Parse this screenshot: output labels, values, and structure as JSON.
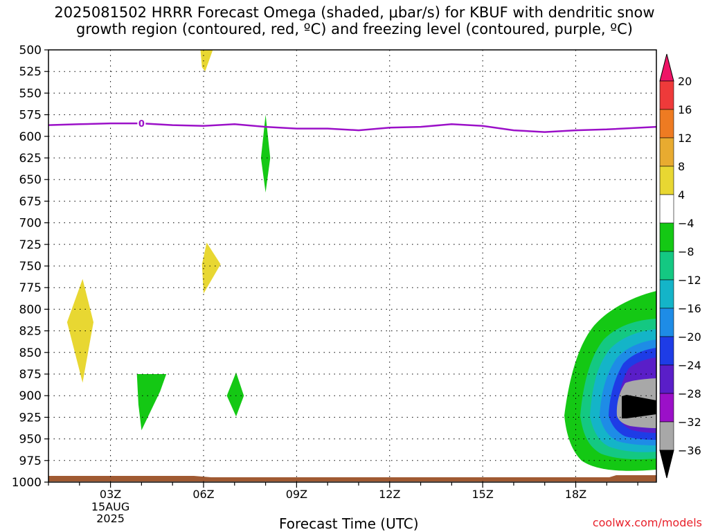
{
  "title": {
    "line1": "2025081502 HRRR Forecast Omega (shaded, μbar/s) for KBUF with dendritic snow",
    "line2": "growth region (contoured, red, ºC) and freezing level (contoured, purple, ºC)"
  },
  "watermark": "coolwx.com/models",
  "chart_data": {
    "type": "heatmap",
    "xlabel": "Forecast Time (UTC)",
    "ylabel": "",
    "x_ticks": [
      {
        "label": "03Z",
        "sub": [
          "15AUG",
          "2025"
        ]
      },
      {
        "label": "06Z",
        "sub": []
      },
      {
        "label": "09Z",
        "sub": []
      },
      {
        "label": "12Z",
        "sub": []
      },
      {
        "label": "15Z",
        "sub": []
      },
      {
        "label": "18Z",
        "sub": []
      }
    ],
    "xlim_hours_utc": [
      1.0,
      20.6
    ],
    "y_ticks": [
      "500",
      "525",
      "550",
      "575",
      "600",
      "625",
      "650",
      "675",
      "700",
      "725",
      "750",
      "775",
      "800",
      "825",
      "850",
      "875",
      "900",
      "925",
      "950",
      "975",
      "1000"
    ],
    "ylim_hpa": [
      500,
      1000
    ],
    "grid": true,
    "colorbar": {
      "labels": [
        "20",
        "16",
        "12",
        "8",
        "4",
        "−4",
        "−8",
        "−12",
        "−16",
        "−20",
        "−24",
        "−28",
        "−32",
        "−36"
      ],
      "colors": [
        "#ee1466",
        "#ee3a3a",
        "#ee7b22",
        "#e8ab30",
        "#e8d732",
        "#ffffff",
        "#14c814",
        "#14c882",
        "#14b4c8",
        "#1e8ce6",
        "#1e3ce6",
        "#5a1ec8",
        "#9b10c8",
        "#a8a8a8",
        "#000000"
      ]
    },
    "freezing_level": {
      "label": "0",
      "color": "#9b10c8",
      "points": [
        [
          1.0,
          587
        ],
        [
          2.0,
          586
        ],
        [
          3.0,
          585
        ],
        [
          4.0,
          585
        ],
        [
          5.0,
          587
        ],
        [
          6.0,
          588
        ],
        [
          7.0,
          586
        ],
        [
          8.0,
          589
        ],
        [
          9.0,
          591
        ],
        [
          10.0,
          591
        ],
        [
          11.0,
          593
        ],
        [
          12.0,
          590
        ],
        [
          13.0,
          589
        ],
        [
          14.0,
          586
        ],
        [
          15.0,
          588
        ],
        [
          16.0,
          593
        ],
        [
          17.0,
          595
        ],
        [
          18.0,
          593
        ],
        [
          19.0,
          592
        ],
        [
          20.6,
          589
        ]
      ]
    },
    "omega_regions": [
      {
        "value": 4,
        "color": "#e8d732",
        "points": [
          [
            2.1,
            765
          ],
          [
            1.6,
            815
          ],
          [
            2.1,
            885
          ],
          [
            2.45,
            815
          ]
        ]
      },
      {
        "value": 4,
        "color": "#e8d732",
        "points": [
          [
            6.1,
            723
          ],
          [
            5.95,
            748
          ],
          [
            6.0,
            782
          ],
          [
            6.55,
            748
          ]
        ]
      },
      {
        "value": 4,
        "color": "#e8d732",
        "points": [
          [
            5.9,
            500
          ],
          [
            5.95,
            520
          ],
          [
            6.05,
            525
          ],
          [
            6.3,
            500
          ]
        ]
      },
      {
        "value": -4,
        "color": "#14c814",
        "points": [
          [
            8.0,
            575
          ],
          [
            7.85,
            625
          ],
          [
            8.0,
            665
          ],
          [
            8.15,
            625
          ]
        ]
      },
      {
        "value": -4,
        "color": "#14c814",
        "points": [
          [
            3.85,
            875
          ],
          [
            3.9,
            910
          ],
          [
            4.0,
            940
          ],
          [
            4.6,
            895
          ],
          [
            4.8,
            875
          ]
        ]
      },
      {
        "value": -4,
        "color": "#14c814",
        "points": [
          [
            7.05,
            873
          ],
          [
            6.75,
            900
          ],
          [
            7.05,
            924
          ],
          [
            7.3,
            900
          ]
        ]
      }
    ],
    "surface": {
      "color": "#a05a32",
      "hpa_top": 990
    }
  }
}
